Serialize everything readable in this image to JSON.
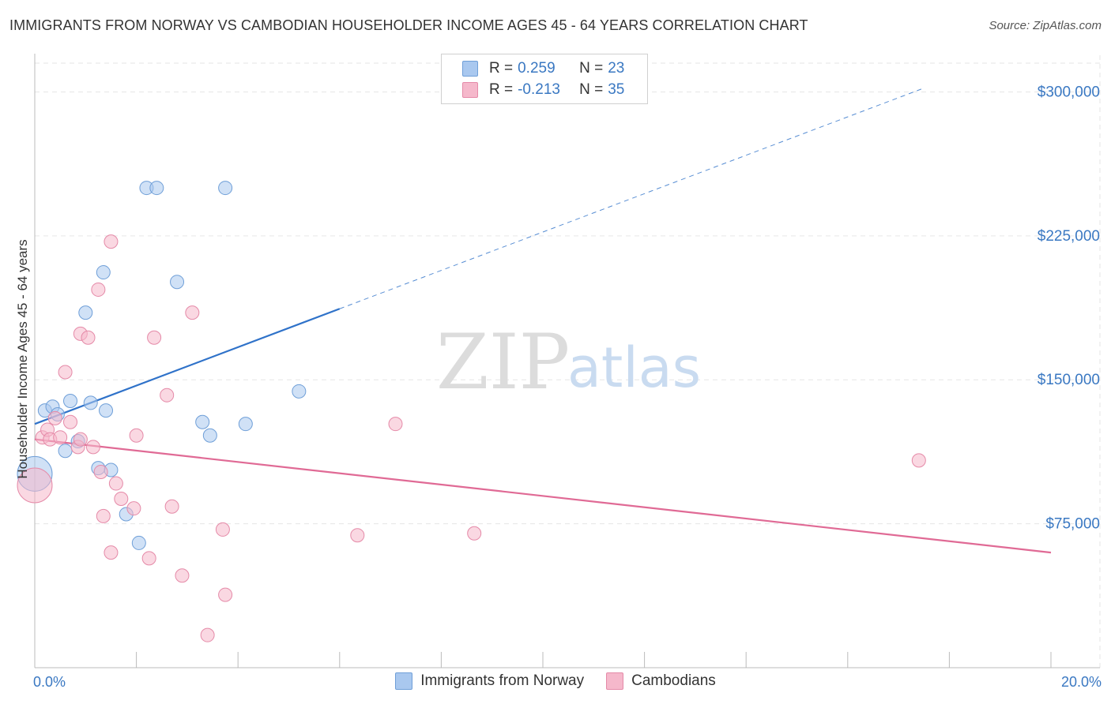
{
  "header": {
    "title": "IMMIGRANTS FROM NORWAY VS CAMBODIAN HOUSEHOLDER INCOME AGES 45 - 64 YEARS CORRELATION CHART",
    "source": "Source: ZipAtlas.com"
  },
  "watermark": {
    "zip": "ZIP",
    "atlas": "atlas"
  },
  "legend": {
    "rows": [
      {
        "r_key": "R =",
        "r_value": "0.259",
        "n_key": "N =",
        "n_value": "23",
        "color": "#a9c8ef"
      },
      {
        "r_key": "R =",
        "r_value": "-0.213",
        "n_key": "N =",
        "n_value": "35",
        "color": "#f5b8cb"
      }
    ]
  },
  "chart_data": {
    "type": "scatter",
    "ylabel": "Householder Income Ages 45 - 64 years",
    "xlim": [
      0,
      20
    ],
    "ylim": [
      0,
      315000
    ],
    "x_tick_labels": [
      {
        "value": 0,
        "label": "0.0%"
      },
      {
        "value": 20,
        "label": "20.0%"
      }
    ],
    "y_tick_labels": [
      {
        "value": 75000,
        "label": "$75,000"
      },
      {
        "value": 150000,
        "label": "$150,000"
      },
      {
        "value": 225000,
        "label": "$225,000"
      },
      {
        "value": 300000,
        "label": "$300,000"
      }
    ],
    "grid": true,
    "series": [
      {
        "name": "Immigrants from Norway",
        "color": "#a9c8ef",
        "stroke": "#6f9fd8",
        "line_color": "#2f72c9",
        "trend": {
          "x0": 0.0,
          "y0": 127000,
          "x1": 6.0,
          "y1": 187000,
          "dashed_to_x": 17.5,
          "dashed_to_y": 302000
        },
        "points": [
          {
            "x": 0.0,
            "y": 101000,
            "big": true
          },
          {
            "x": 0.2,
            "y": 134000
          },
          {
            "x": 0.35,
            "y": 136000
          },
          {
            "x": 0.45,
            "y": 132000
          },
          {
            "x": 0.6,
            "y": 113000
          },
          {
            "x": 0.7,
            "y": 139000
          },
          {
            "x": 0.85,
            "y": 118000
          },
          {
            "x": 1.1,
            "y": 138000
          },
          {
            "x": 1.0,
            "y": 185000
          },
          {
            "x": 1.4,
            "y": 134000
          },
          {
            "x": 1.5,
            "y": 103000
          },
          {
            "x": 1.25,
            "y": 104000
          },
          {
            "x": 1.35,
            "y": 206000
          },
          {
            "x": 1.8,
            "y": 80000
          },
          {
            "x": 2.05,
            "y": 65000
          },
          {
            "x": 2.2,
            "y": 250000
          },
          {
            "x": 2.4,
            "y": 250000
          },
          {
            "x": 2.8,
            "y": 201000
          },
          {
            "x": 3.3,
            "y": 128000
          },
          {
            "x": 3.45,
            "y": 121000
          },
          {
            "x": 3.75,
            "y": 250000
          },
          {
            "x": 4.15,
            "y": 127000
          },
          {
            "x": 5.2,
            "y": 144000
          }
        ]
      },
      {
        "name": "Cambodians",
        "color": "#f5b8cb",
        "stroke": "#e58aa8",
        "line_color": "#e06a95",
        "trend": {
          "x0": 0.0,
          "y0": 119000,
          "x1": 20.0,
          "y1": 60000
        },
        "points": [
          {
            "x": 0.0,
            "y": 95000,
            "big": true
          },
          {
            "x": 0.15,
            "y": 120000
          },
          {
            "x": 0.25,
            "y": 124000
          },
          {
            "x": 0.3,
            "y": 119000
          },
          {
            "x": 0.4,
            "y": 130000
          },
          {
            "x": 0.5,
            "y": 120000
          },
          {
            "x": 0.6,
            "y": 154000
          },
          {
            "x": 0.7,
            "y": 128000
          },
          {
            "x": 0.85,
            "y": 115000
          },
          {
            "x": 0.9,
            "y": 119000
          },
          {
            "x": 1.15,
            "y": 115000
          },
          {
            "x": 0.9,
            "y": 174000
          },
          {
            "x": 1.05,
            "y": 172000
          },
          {
            "x": 1.25,
            "y": 197000
          },
          {
            "x": 1.3,
            "y": 102000
          },
          {
            "x": 1.35,
            "y": 79000
          },
          {
            "x": 1.5,
            "y": 60000
          },
          {
            "x": 1.5,
            "y": 222000
          },
          {
            "x": 1.6,
            "y": 96000
          },
          {
            "x": 1.7,
            "y": 88000
          },
          {
            "x": 1.95,
            "y": 83000
          },
          {
            "x": 2.0,
            "y": 121000
          },
          {
            "x": 2.25,
            "y": 57000
          },
          {
            "x": 2.35,
            "y": 172000
          },
          {
            "x": 2.6,
            "y": 142000
          },
          {
            "x": 2.7,
            "y": 84000
          },
          {
            "x": 2.9,
            "y": 48000
          },
          {
            "x": 3.1,
            "y": 185000
          },
          {
            "x": 3.4,
            "y": 17000
          },
          {
            "x": 3.7,
            "y": 72000
          },
          {
            "x": 3.75,
            "y": 38000
          },
          {
            "x": 6.35,
            "y": 69000
          },
          {
            "x": 7.1,
            "y": 127000
          },
          {
            "x": 8.65,
            "y": 70000
          },
          {
            "x": 17.4,
            "y": 108000
          }
        ]
      }
    ]
  }
}
